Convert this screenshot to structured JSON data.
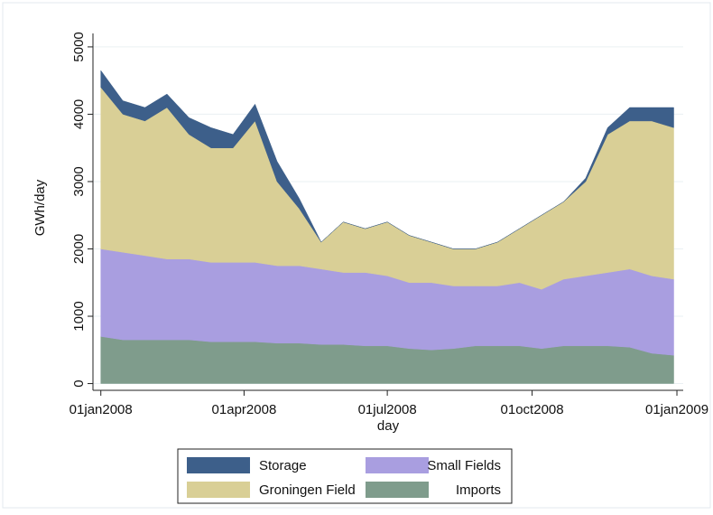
{
  "chart_data": {
    "type": "stacked_area",
    "xlabel": "day",
    "ylabel": "GWh/day",
    "x": [
      "2008-01-01",
      "2008-01-15",
      "2008-01-29",
      "2008-02-12",
      "2008-02-26",
      "2008-03-11",
      "2008-03-25",
      "2008-04-08",
      "2008-04-22",
      "2008-05-06",
      "2008-05-20",
      "2008-06-03",
      "2008-06-17",
      "2008-07-01",
      "2008-07-15",
      "2008-07-29",
      "2008-08-12",
      "2008-08-26",
      "2008-09-09",
      "2008-09-23",
      "2008-10-07",
      "2008-10-21",
      "2008-11-04",
      "2008-11-18",
      "2008-12-02",
      "2008-12-16",
      "2008-12-30"
    ],
    "series": [
      {
        "name": "Imports",
        "color": "#7f9c8c",
        "values": [
          700,
          650,
          650,
          650,
          650,
          620,
          620,
          620,
          600,
          600,
          580,
          580,
          560,
          560,
          520,
          500,
          520,
          560,
          560,
          560,
          520,
          560,
          560,
          560,
          540,
          450,
          420
        ]
      },
      {
        "name": "Small Fields",
        "color": "#a99ee0",
        "values": [
          1300,
          1300,
          1250,
          1200,
          1200,
          1180,
          1180,
          1180,
          1150,
          1150,
          1120,
          1070,
          1090,
          1040,
          980,
          1000,
          930,
          890,
          890,
          940,
          880,
          990,
          1040,
          1090,
          1160,
          1150,
          1130
        ]
      },
      {
        "name": "Groningen Field",
        "color": "#d9cf96",
        "values": [
          2400,
          2050,
          2000,
          2250,
          1850,
          1700,
          1700,
          2100,
          1250,
          850,
          400,
          750,
          650,
          800,
          700,
          600,
          550,
          550,
          650,
          800,
          1100,
          1150,
          1400,
          2050,
          2200,
          2300,
          2250
        ]
      },
      {
        "name": "Storage",
        "color": "#3d5f8a",
        "values": [
          250,
          200,
          200,
          200,
          250,
          300,
          200,
          250,
          300,
          150,
          0,
          0,
          0,
          0,
          0,
          0,
          0,
          0,
          0,
          0,
          0,
          0,
          50,
          100,
          200,
          200,
          300
        ]
      }
    ],
    "xlim": [
      "2007-12-27",
      "2009-01-05"
    ],
    "xticks": [
      {
        "value": "2008-01-01",
        "label": "01jan2008"
      },
      {
        "value": "2008-04-01",
        "label": "01apr2008"
      },
      {
        "value": "2008-07-01",
        "label": "01jul2008"
      },
      {
        "value": "2008-10-01",
        "label": "01oct2008"
      },
      {
        "value": "2009-01-01",
        "label": "01jan2009"
      }
    ],
    "ylim": [
      -100,
      5200
    ],
    "yticks": [
      0,
      1000,
      2000,
      3000,
      4000,
      5000
    ],
    "grid": true
  }
}
